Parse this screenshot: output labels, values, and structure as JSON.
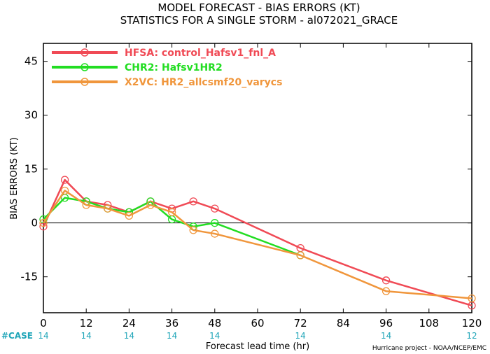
{
  "chart_data": {
    "type": "line",
    "title": "MODEL FORECAST - BIAS ERRORS (KT)",
    "subtitle": "STATISTICS FOR A SINGLE STORM - al072021_GRACE",
    "xlabel": "Forecast lead time (hr)",
    "ylabel": "BIAS ERRORS (KT)",
    "xlim": [
      0,
      120
    ],
    "ylim": [
      -25,
      50
    ],
    "xticks": [
      0,
      12,
      24,
      36,
      48,
      60,
      72,
      84,
      96,
      108,
      120
    ],
    "yticks": [
      -15,
      0,
      15,
      30,
      45
    ],
    "zero_line": true,
    "legend_position": "top-left",
    "case_label": "#CASE",
    "case_x": [
      0,
      12,
      24,
      36,
      48,
      72,
      96,
      120
    ],
    "case_counts": [
      "14",
      "14",
      "14",
      "14",
      "14",
      "14",
      "14",
      "12"
    ],
    "credit": "Hurricane project - NOAA/NCEP/EMC",
    "series": [
      {
        "name": "HFSA: control_Hafsv1_fnl_A",
        "color": "#f04a55",
        "x": [
          0,
          6,
          12,
          18,
          24,
          30,
          36,
          42,
          48,
          72,
          96,
          120
        ],
        "y": [
          -1,
          12,
          6,
          5,
          3,
          6,
          4,
          6,
          4,
          -7,
          -16,
          -23
        ]
      },
      {
        "name": "CHR2: Hafsv1HR2",
        "color": "#22dd22",
        "x": [
          0,
          6,
          12,
          18,
          24,
          30,
          36,
          42,
          48,
          72
        ],
        "y": [
          1,
          7,
          6,
          4,
          3,
          6,
          1,
          -1,
          0,
          -9
        ]
      },
      {
        "name": "X2VC: HR2_allcsmf20_varycs",
        "color": "#f0963c",
        "x": [
          0,
          6,
          12,
          18,
          24,
          30,
          36,
          42,
          48,
          72,
          96,
          120
        ],
        "y": [
          0,
          9,
          5,
          4,
          2,
          5,
          3,
          -2,
          -3,
          -9,
          -19,
          -21
        ]
      }
    ]
  }
}
